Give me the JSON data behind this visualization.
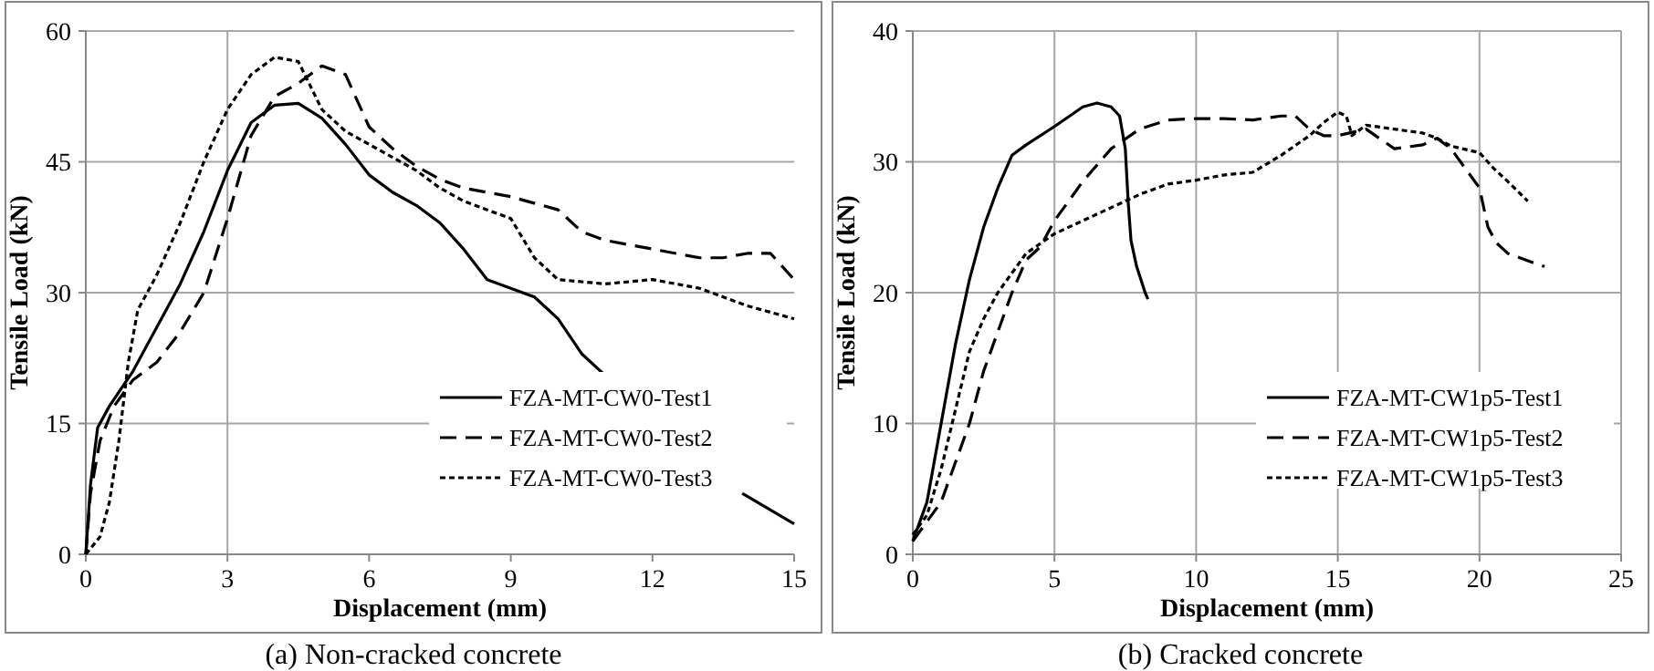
{
  "chart_data": [
    {
      "type": "line",
      "title": "(a) Non-cracked concrete",
      "xlabel": "Displacement (mm)",
      "ylabel": "Tensile Load (kN)",
      "xlim": [
        0,
        15
      ],
      "xticks": [
        0,
        3,
        6,
        9,
        12,
        15
      ],
      "ylim": [
        0,
        60
      ],
      "yticks": [
        0,
        15,
        30,
        45,
        60
      ],
      "grid": "y",
      "legend": "bottom right",
      "ref_lines": [
        {
          "axis": "x",
          "value": 3,
          "color": "#a6a6a6"
        }
      ],
      "series": [
        {
          "name": "FZA-MT-CW0-Test1",
          "color": "#000000",
          "line_style": "solid",
          "x": [
            0,
            0.1,
            0.25,
            0.5,
            1,
            1.5,
            2,
            2.5,
            3,
            3.5,
            4,
            4.5,
            5,
            5.5,
            6,
            6.5,
            7,
            7.5,
            8,
            8.5,
            9,
            9.5,
            10,
            10.5,
            11,
            12,
            13.9,
            15
          ],
          "values": [
            0,
            8,
            14.5,
            17,
            21,
            26,
            31,
            37,
            44,
            49.5,
            51.5,
            51.7,
            50,
            47,
            43.5,
            41.5,
            40,
            38,
            35,
            31.5,
            30.5,
            29.5,
            27,
            23,
            20.5,
            null,
            7,
            3.5
          ]
        },
        {
          "name": "FZA-MT-CW0-Test2",
          "color": "#000000",
          "line_style": "dashed",
          "x": [
            0,
            0.1,
            0.3,
            0.6,
            1,
            1.5,
            2,
            2.5,
            3,
            3.5,
            4,
            4.5,
            5,
            5.5,
            6,
            6.5,
            7,
            7.5,
            8,
            9,
            10,
            10.5,
            11,
            12,
            12.5,
            13,
            13.5,
            14,
            14.5,
            15
          ],
          "values": [
            0,
            7,
            13,
            17,
            20,
            22,
            25.5,
            30,
            38.5,
            48,
            52.5,
            54,
            56,
            55,
            49,
            46.5,
            44.5,
            43,
            42,
            41,
            39.5,
            37,
            36,
            35,
            34.5,
            34,
            34,
            34.5,
            34.5,
            31.5
          ]
        },
        {
          "name": "FZA-MT-CW0-Test3",
          "color": "#000000",
          "line_style": "dotted",
          "x": [
            0,
            0.3,
            0.5,
            0.7,
            0.9,
            1.1,
            1.5,
            2,
            2.5,
            3,
            3.5,
            4,
            4.5,
            5,
            5.5,
            6,
            6.5,
            7,
            7.5,
            8,
            9,
            9.5,
            10,
            11,
            12,
            13,
            14,
            15
          ],
          "values": [
            0,
            2,
            6,
            13,
            22,
            28,
            32,
            38,
            45,
            51,
            55,
            57,
            56.5,
            51,
            48.5,
            47,
            45.5,
            44,
            42,
            40.5,
            38.5,
            34,
            31.5,
            31,
            31.5,
            30.5,
            28.5,
            27
          ]
        }
      ]
    },
    {
      "type": "line",
      "title": "(b) Cracked concrete",
      "xlabel": "Displacement (mm)",
      "ylabel": "Tensile Load (kN)",
      "xlim": [
        0,
        25
      ],
      "xticks": [
        0,
        5,
        10,
        15,
        20,
        25
      ],
      "ylim": [
        0,
        40
      ],
      "yticks": [
        0,
        10,
        20,
        30,
        40
      ],
      "grid": true,
      "legend": "bottom right",
      "series": [
        {
          "name": "FZA-MT-CW1p5-Test1",
          "color": "#000000",
          "line_style": "solid",
          "x": [
            0,
            0.5,
            1,
            1.5,
            2,
            2.5,
            3,
            3.5,
            4,
            5,
            6,
            6.5,
            7,
            7.3,
            7.5,
            7.6,
            7.7,
            7.9,
            8.2,
            8.3
          ],
          "values": [
            1,
            4,
            10,
            16,
            21,
            25,
            28,
            30.5,
            31.3,
            32.7,
            34.2,
            34.5,
            34.2,
            33.5,
            31,
            27,
            24,
            22,
            20,
            19.5
          ]
        },
        {
          "name": "FZA-MT-CW1p5-Test2",
          "color": "#000000",
          "line_style": "dashed",
          "x": [
            0,
            0.5,
            1,
            1.5,
            2,
            2.5,
            3,
            3.5,
            4,
            4.5,
            5,
            6,
            7,
            8,
            9,
            10,
            11,
            12,
            13,
            13.5,
            14,
            14.5,
            15,
            16,
            17,
            18,
            18.5,
            19,
            20,
            20.3,
            20.6,
            21,
            22,
            22.3
          ],
          "values": [
            1,
            2.5,
            4,
            7,
            10,
            14,
            17,
            20,
            22.5,
            23.5,
            25.5,
            28.5,
            31,
            32.5,
            33.2,
            33.3,
            33.3,
            33.2,
            33.5,
            33.5,
            32.5,
            32,
            32,
            32.5,
            31,
            31.3,
            31.8,
            31,
            28,
            25,
            23.8,
            23,
            22.2,
            22
          ]
        },
        {
          "name": "FZA-MT-CW1p5-Test3",
          "color": "#000000",
          "line_style": "dotted",
          "x": [
            0,
            0.5,
            1,
            1.5,
            2,
            2.5,
            3,
            3.5,
            4,
            5,
            6,
            7,
            8,
            9,
            10,
            11,
            12,
            13,
            14,
            14.5,
            15,
            15.3,
            15.5,
            16,
            17,
            18,
            18.5,
            19,
            20,
            20.5,
            21,
            21.7
          ],
          "values": [
            1.5,
            3,
            6.5,
            11,
            15.5,
            18,
            20,
            21.5,
            23,
            24.5,
            25.5,
            26.5,
            27.5,
            28.3,
            28.6,
            29,
            29.2,
            30.5,
            32,
            33,
            33.8,
            33.5,
            32,
            32.8,
            32.5,
            32.2,
            31.8,
            31.2,
            30.7,
            29.5,
            28.5,
            27
          ]
        }
      ]
    }
  ]
}
